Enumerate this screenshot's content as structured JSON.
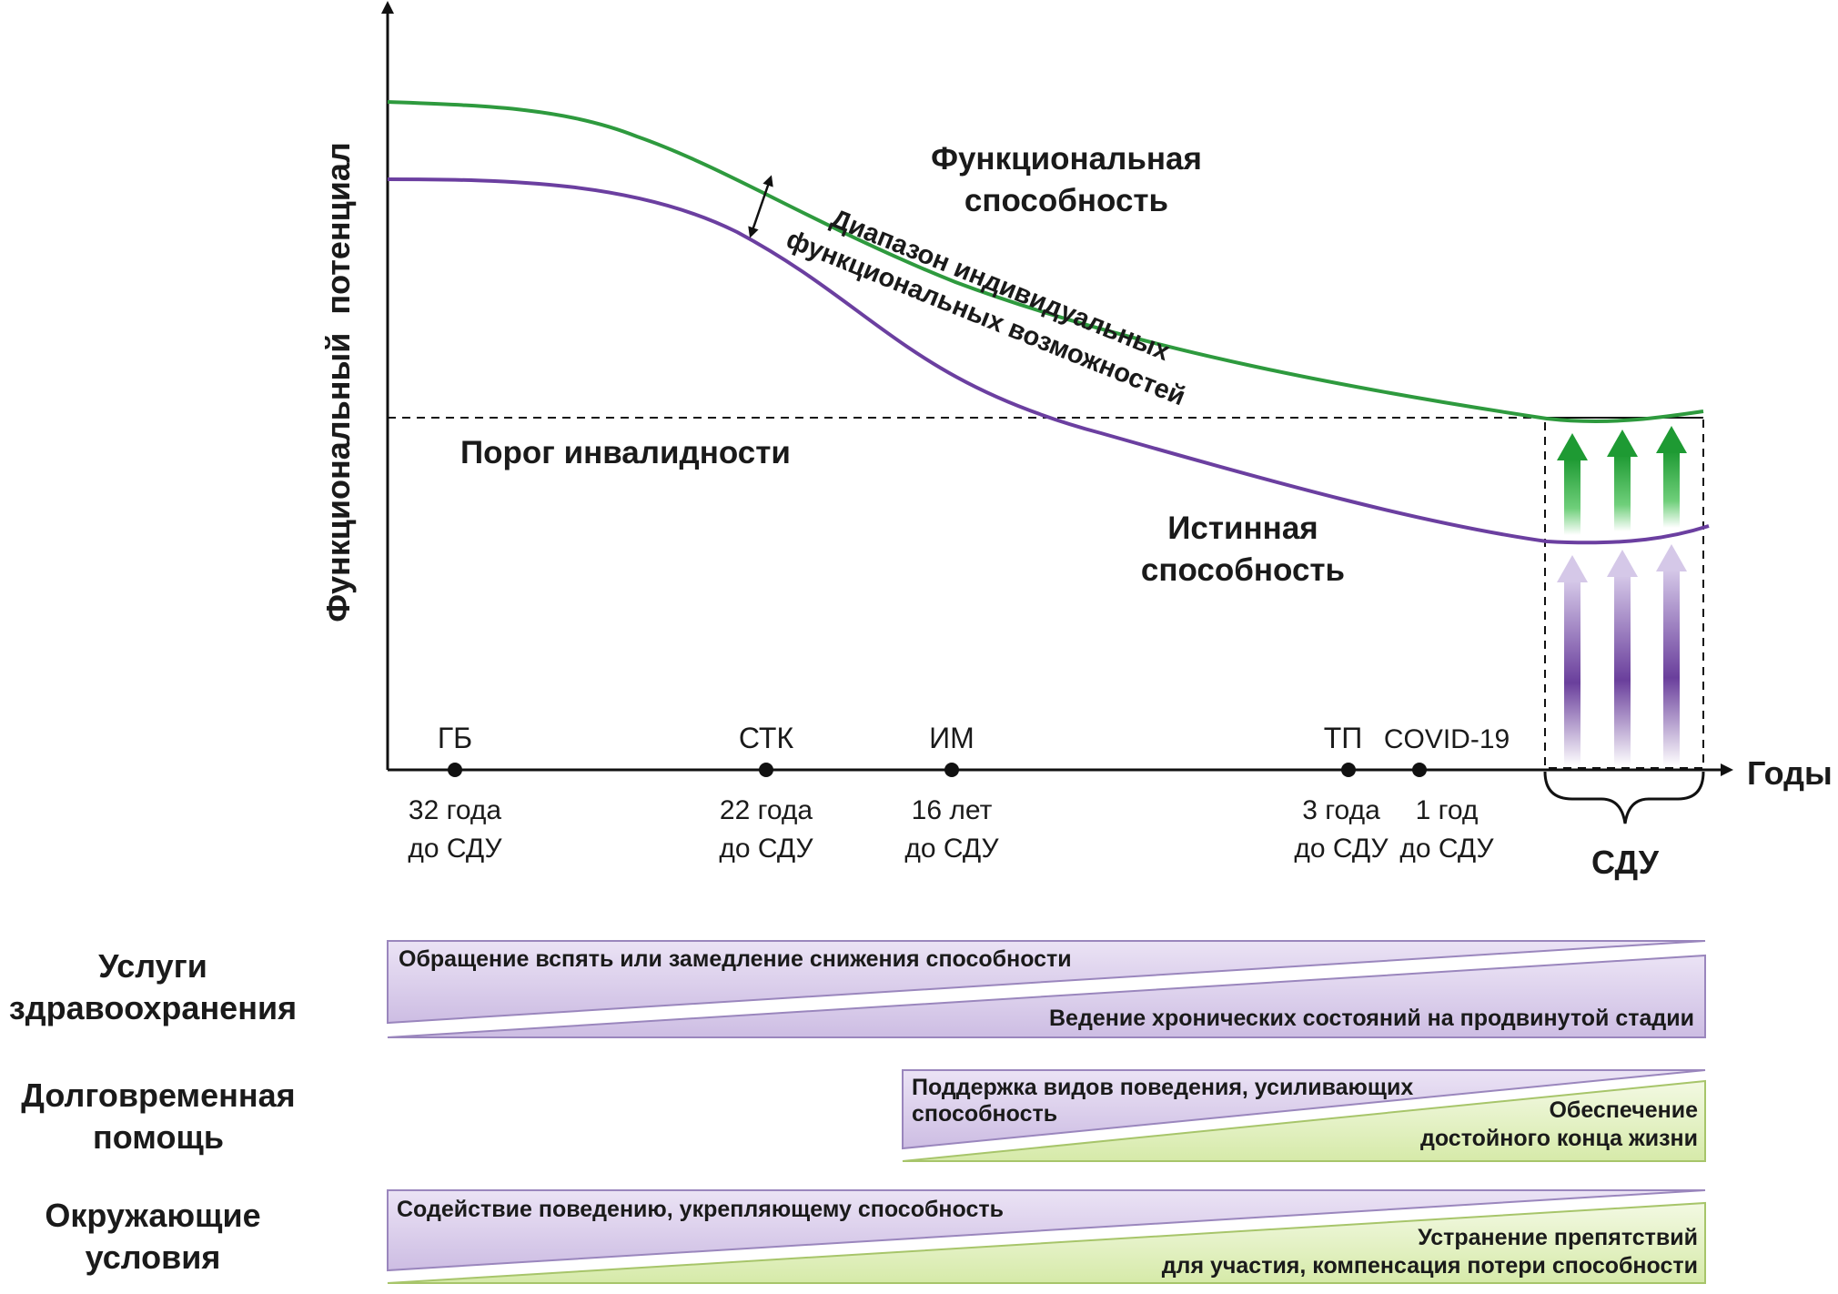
{
  "axes": {
    "y_label": "Функциональный  потенциал",
    "x_label": "Годы"
  },
  "curves": {
    "functional_line1": "Функциональная",
    "functional_line2": "способность",
    "true_line1": "Истинная",
    "true_line2": "способность",
    "range_line1": "Диапазон индивидуальных",
    "range_line2": "функциональных возможностей",
    "threshold": "Порог инвалидности",
    "colors": {
      "functional": "#2e9a3e",
      "true": "#6b3fa0"
    }
  },
  "events": [
    {
      "label": "ГБ",
      "sub1": "32 года",
      "sub2": "до СДУ"
    },
    {
      "label": "СТК",
      "sub1": "22 года",
      "sub2": "до СДУ"
    },
    {
      "label": "ИМ",
      "sub1": "16 лет",
      "sub2": "до СДУ"
    },
    {
      "label": "ТП",
      "sub1": "3 года",
      "sub2": "до СДУ"
    },
    {
      "label": "COVID-19",
      "sub1": "1 год",
      "sub2": "до СДУ"
    }
  ],
  "sdu_label": "СДУ",
  "rows": {
    "health": {
      "label1": "Услуги",
      "label2": "здравоохранения",
      "top_text": "Обращение вспять или замедление снижения способности",
      "bottom_text": "Ведение хронических состояний на продвинутой стадии"
    },
    "longterm": {
      "label1": "Долговременная",
      "label2": "помощь",
      "top_text1": "Поддержка видов поведения, усиливающих",
      "top_text2": "способность",
      "bottom_text1": "Обеспечение",
      "bottom_text2": "достойного конца жизни"
    },
    "environment": {
      "label1": "Окружающие",
      "label2": "условия",
      "top_text": "Содействие поведению, укрепляющему способность",
      "bottom_text1": "Устранение препятствий",
      "bottom_text2": "для участия, компенсация потери способности"
    },
    "colors": {
      "purple": "#d9ccea",
      "green": "#e3f0c4"
    }
  }
}
